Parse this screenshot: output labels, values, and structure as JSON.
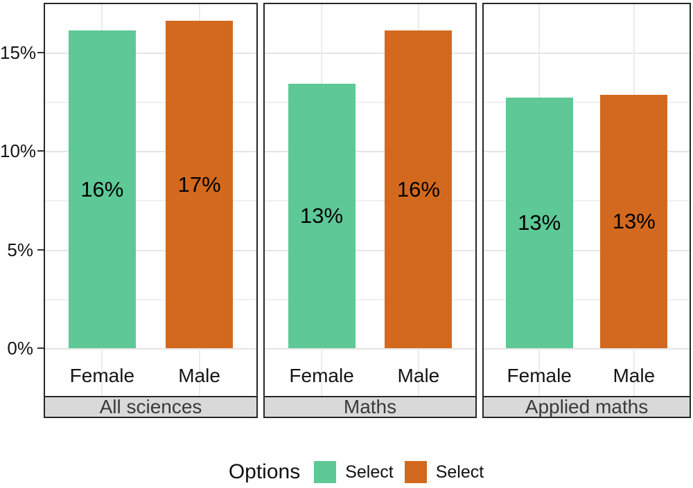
{
  "chart_data": {
    "type": "bar",
    "facet_strip_position": "bottom",
    "legend_position": "bottom",
    "grid": true,
    "y_axis": {
      "unit": "%",
      "ymax": 17.4,
      "major_ticks": [
        {
          "value": 0,
          "label": "0%"
        },
        {
          "value": 5,
          "label": "5%"
        },
        {
          "value": 10,
          "label": "10%"
        },
        {
          "value": 15,
          "label": "15%"
        }
      ],
      "minor_tick_values": [
        2.5,
        7.5,
        12.5
      ]
    },
    "series": [
      {
        "name": "Female",
        "color": "#5ec897"
      },
      {
        "name": "Male",
        "color": "#d2691e"
      }
    ],
    "facets": [
      {
        "label": "All sciences",
        "categories": [
          "Female",
          "Male"
        ],
        "values": [
          16.1,
          16.6
        ],
        "bar_labels": [
          "16%",
          "17%"
        ]
      },
      {
        "label": "Maths",
        "categories": [
          "Female",
          "Male"
        ],
        "values": [
          13.4,
          16.1
        ],
        "bar_labels": [
          "13%",
          "16%"
        ]
      },
      {
        "label": "Applied maths",
        "categories": [
          "Female",
          "Male"
        ],
        "values": [
          12.7,
          12.85
        ],
        "bar_labels": [
          "13%",
          "13%"
        ]
      }
    ],
    "legend": {
      "title": "Options",
      "items": [
        {
          "label": "Select",
          "color": "#5ec897"
        },
        {
          "label": "Select",
          "color": "#d2691e"
        }
      ]
    }
  }
}
